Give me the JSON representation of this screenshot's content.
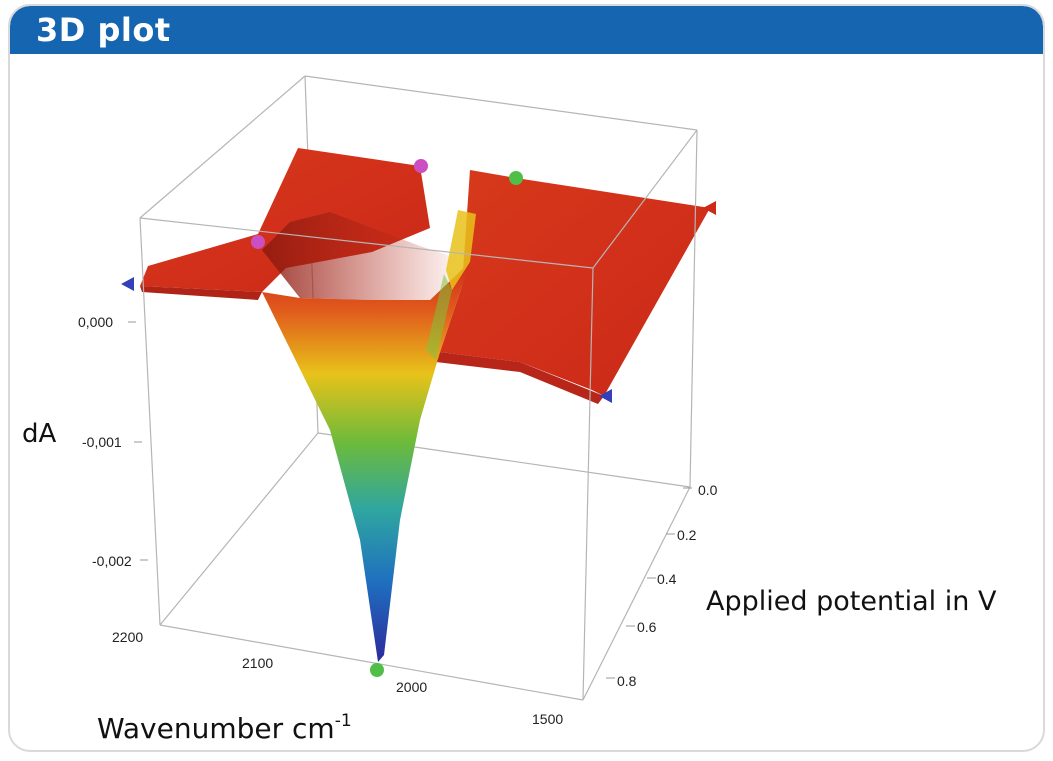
{
  "panel": {
    "title": "3D plot"
  },
  "chart_data": {
    "type": "surface",
    "title": "",
    "zlabel": "dA",
    "xlabel": "Wavenumber cm",
    "xlabel_sup": "-1",
    "ylabel": "Applied potential in V",
    "x_ticks": [
      "2200",
      "2100",
      "2000",
      "1500"
    ],
    "y_ticks": [
      "0.0",
      "0.2",
      "0.4",
      "0.6",
      "0.8"
    ],
    "z_ticks": [
      "0,000",
      "-0,001",
      "-0,002"
    ],
    "x_range": [
      2200,
      1500
    ],
    "y_range": [
      0.0,
      0.9
    ],
    "z_range": [
      -0.0027,
      0.0003
    ],
    "min_band": {
      "wavenumber": 2010,
      "potential": 0.9,
      "dA": -0.0026
    },
    "colormap": [
      "#2c2a9c",
      "#1f6fbf",
      "#2fa6a0",
      "#6dbb3a",
      "#e8c21a",
      "#e05a1c",
      "#cf2a18"
    ],
    "markers": [
      {
        "color": "#3340b8"
      },
      {
        "color": "#cc4fc2"
      },
      {
        "color": "#cc4fc2"
      },
      {
        "color": "#4fbf48"
      },
      {
        "color": "#cf2a18"
      },
      {
        "color": "#3340b8"
      },
      {
        "color": "#4fbf48"
      }
    ]
  }
}
